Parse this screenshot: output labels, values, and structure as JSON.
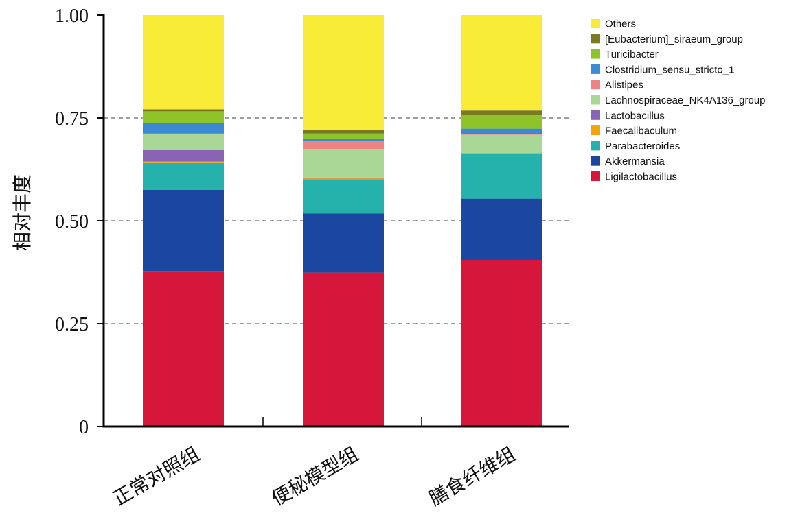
{
  "chart_data": {
    "type": "bar",
    "stacked": true,
    "categories": [
      "正常对照组",
      "便秘模型组",
      "膳食纤维组"
    ],
    "ylabel": "相对丰度",
    "xlabel": "",
    "ylim": [
      0,
      1
    ],
    "yticks": [
      0,
      0.25,
      0.5,
      0.75,
      1.0
    ],
    "ytick_labels": [
      "0",
      "0.25",
      "0.50",
      "0.75",
      "1.00"
    ],
    "grid": "horizontal dashed",
    "legend_position": "top-right",
    "series": [
      {
        "name": "Ligilactobacillus",
        "color": "#d7163b",
        "values": [
          0.378,
          0.374,
          0.405
        ]
      },
      {
        "name": "Akkermansia",
        "color": "#1b47a0",
        "values": [
          0.197,
          0.144,
          0.149
        ]
      },
      {
        "name": "Parabacteroides",
        "color": "#26b2ac",
        "values": [
          0.067,
          0.083,
          0.108
        ]
      },
      {
        "name": "Faecalibaculum",
        "color": "#f5a30c",
        "values": [
          0.002,
          0.002,
          0.001
        ]
      },
      {
        "name": "Lactobacillus",
        "color": "#8963b6",
        "values": [
          0.028,
          0.001,
          0.001
        ]
      },
      {
        "name": "Lachnospiraceae_NK4A136_group",
        "color": "#a9d796",
        "values": [
          0.038,
          0.069,
          0.045
        ]
      },
      {
        "name": "Alistipes",
        "color": "#ef8383",
        "values": [
          0.002,
          0.022,
          0.002
        ]
      },
      {
        "name": "Clostridium_sensu_stricto_1",
        "color": "#3b8ad3",
        "values": [
          0.025,
          0.004,
          0.013
        ]
      },
      {
        "name": "Turicibacter",
        "color": "#8ec42a",
        "values": [
          0.029,
          0.013,
          0.034
        ]
      },
      {
        "name": "[Eubacterium]_siraeum_group",
        "color": "#7a7a22",
        "values": [
          0.005,
          0.008,
          0.01
        ]
      },
      {
        "name": "Others",
        "color": "#f9ec36",
        "values": [
          0.229,
          0.28,
          0.232
        ]
      }
    ]
  }
}
